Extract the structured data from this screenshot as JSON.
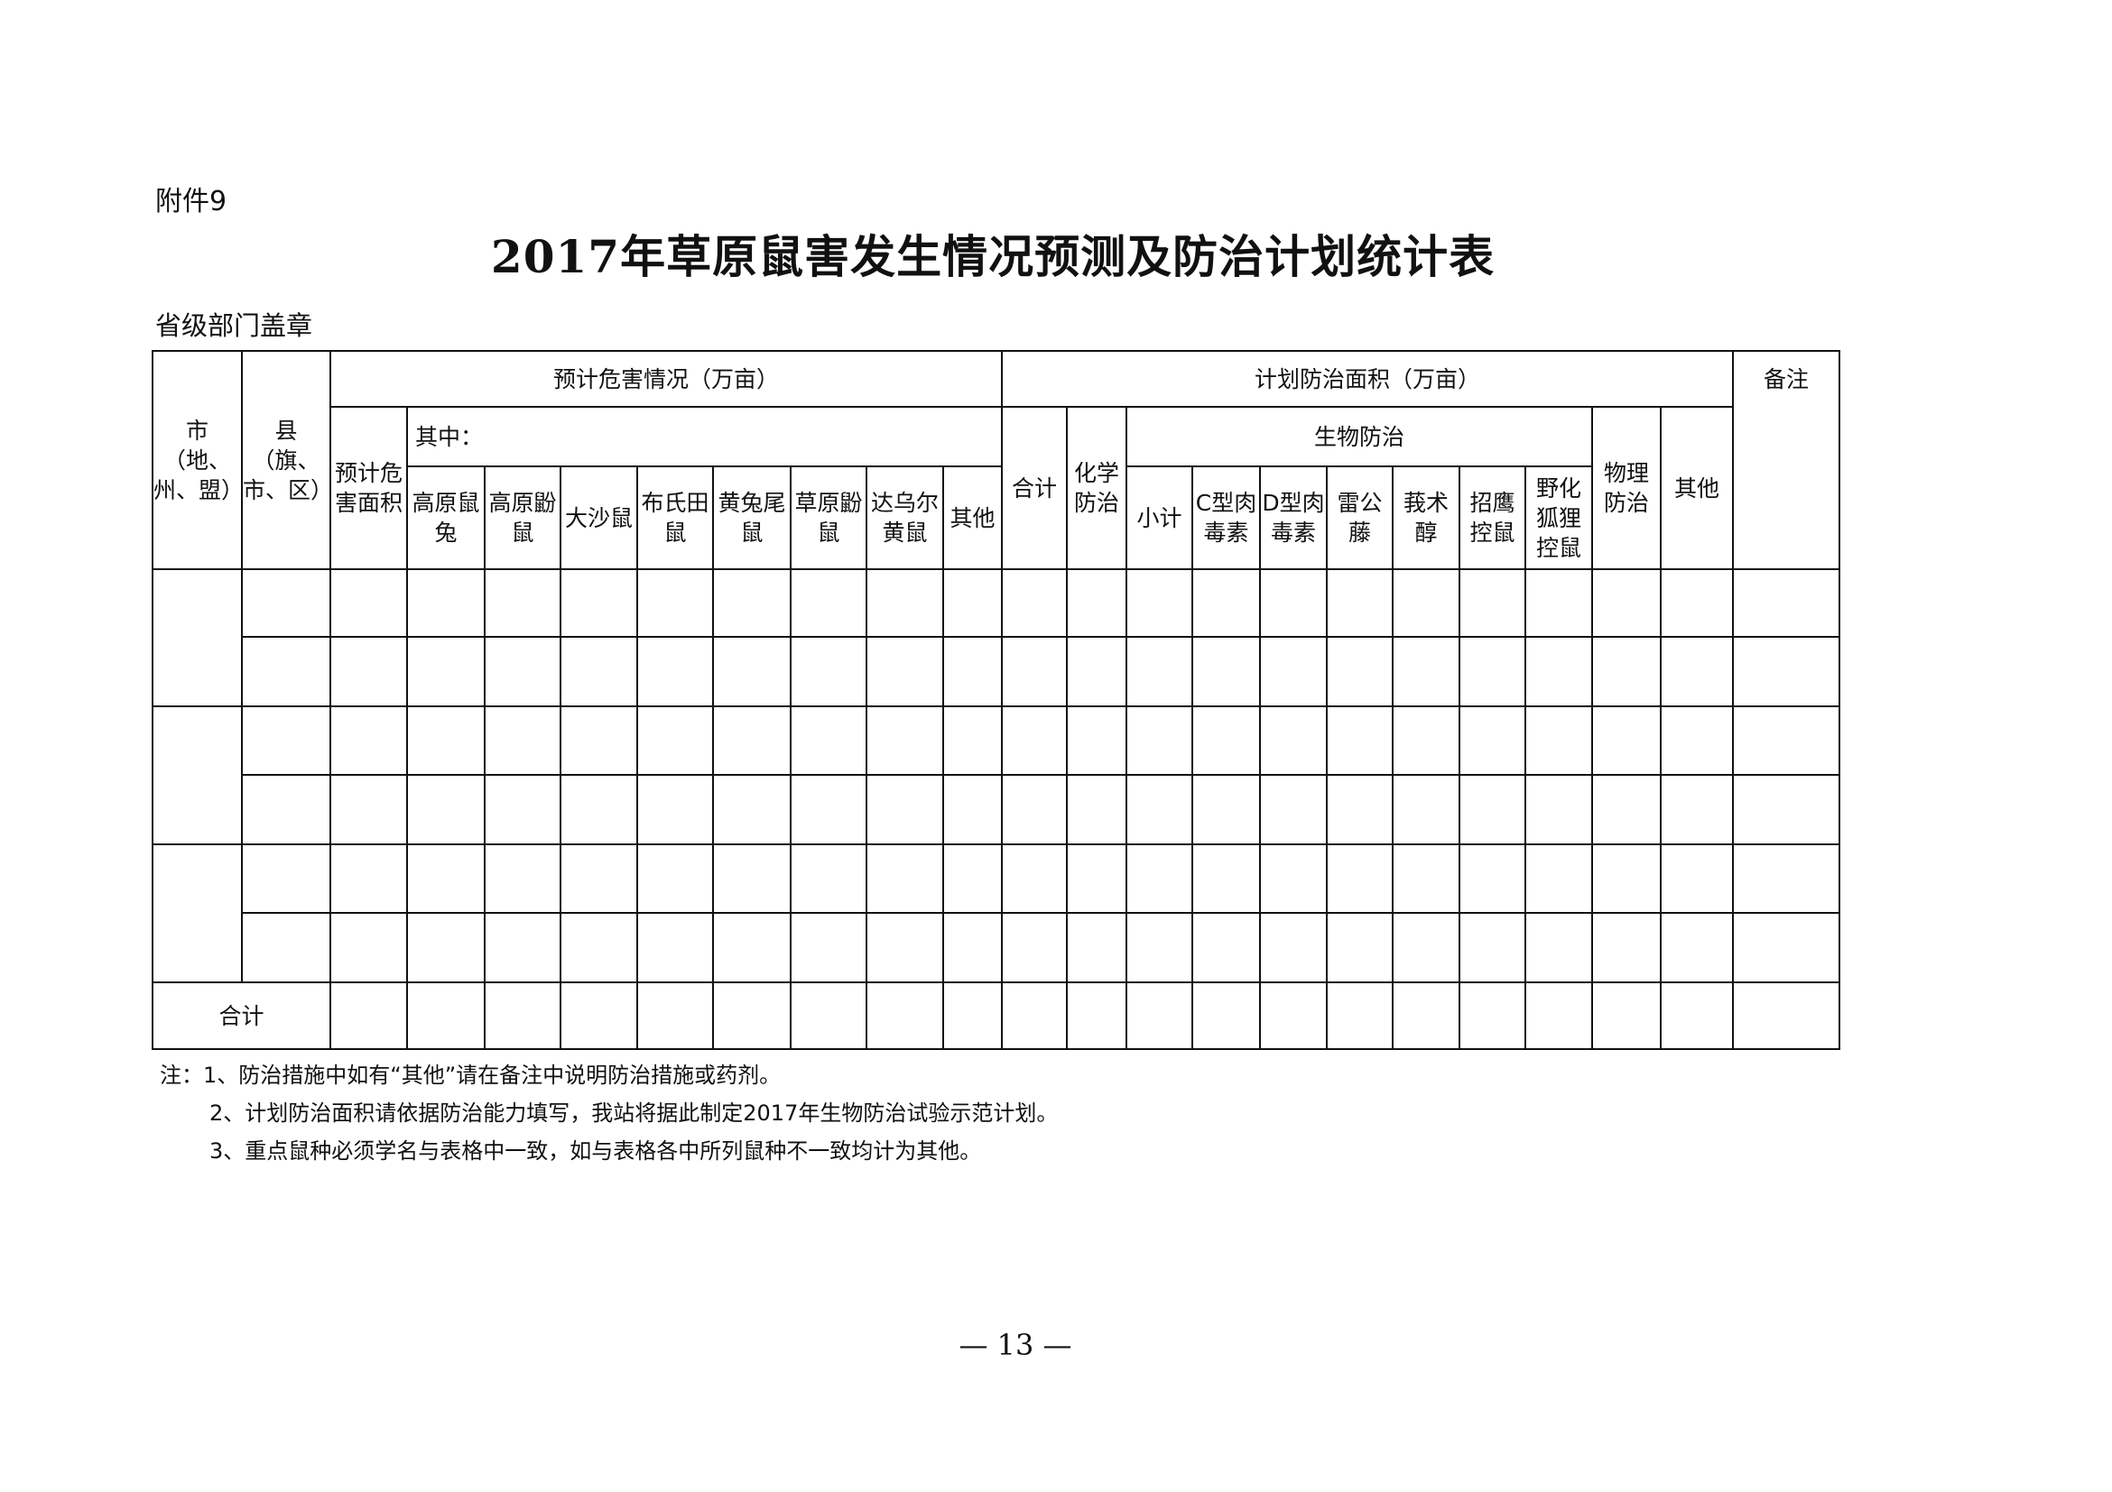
{
  "attachment": "附件9",
  "title": "2017年草原鼠害发生情况预测及防治计划统计表",
  "stamp_label": "省级部门盖章",
  "table": {
    "col_city": "市（地、州、盟）",
    "col_county": "县（旗、市、区）",
    "group_damage": "预计危害情况（万亩）",
    "col_damage_area": "预计危害面积",
    "among": "其中：",
    "species": [
      "高原鼠兔",
      "高原鼢鼠",
      "大沙鼠",
      "布氏田鼠",
      "黄兔尾鼠",
      "草原鼢鼠",
      "达乌尔黄鼠",
      "其他"
    ],
    "group_control": "计划防治面积（万亩）",
    "col_total": "合计",
    "col_chemical": "化学防治",
    "group_bio": "生物防治",
    "bio": [
      "小计",
      "C型肉毒素",
      "D型肉毒素",
      "雷公藤",
      "莪术醇",
      "招鹰控鼠",
      "野化狐狸控鼠"
    ],
    "col_physical": "物理防治",
    "col_other": "其他",
    "col_remarks": "备注",
    "total_row": "合计"
  },
  "notes": [
    "注：1、防治措施中如有“其他”请在备注中说明防治措施或药剂。",
    "2、计划防治面积请依据防治能力填写，我站将据此制定2017年生物防治试验示范计划。",
    "3、重点鼠种必须学名与表格中一致，如与表格各中所列鼠种不一致均计为其他。"
  ],
  "page_number": "— 13 —"
}
